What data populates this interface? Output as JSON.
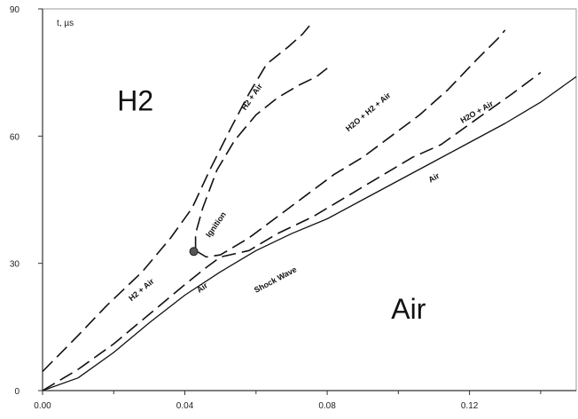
{
  "chart_data": {
    "type": "line",
    "title": "",
    "xlabel": "",
    "ylabel": "t, µs",
    "xlim": [
      0,
      0.15
    ],
    "ylim": [
      0,
      90
    ],
    "grid": false,
    "legend": "none",
    "x_ticks": [
      0.0,
      0.04,
      0.08,
      0.12
    ],
    "x_tick_labels": [
      "0.00",
      "0.04",
      "0.08",
      "0.12"
    ],
    "y_ticks": [
      0,
      30,
      60,
      90
    ],
    "y_tick_labels": [
      "0",
      "30",
      "60",
      "90"
    ],
    "regions": [
      {
        "text": "H2",
        "x": 0.021,
        "y": 66
      },
      {
        "text": "Air",
        "x": 0.098,
        "y": 17
      }
    ],
    "series": [
      {
        "dash": "long",
        "points": [
          [
            0.0,
            4.5
          ],
          [
            0.01,
            13
          ],
          [
            0.018,
            20
          ],
          [
            0.028,
            28
          ],
          [
            0.036,
            36
          ],
          [
            0.042,
            43
          ],
          [
            0.047,
            52
          ],
          [
            0.053,
            62
          ],
          [
            0.058,
            70
          ],
          [
            0.063,
            77
          ],
          [
            0.069,
            81
          ],
          [
            0.073,
            84
          ],
          [
            0.075,
            86
          ]
        ]
      },
      {
        "dash": "long",
        "points": [
          [
            0.043,
            33
          ],
          [
            0.043,
            37
          ],
          [
            0.045,
            43
          ],
          [
            0.049,
            52
          ],
          [
            0.054,
            59
          ],
          [
            0.06,
            65
          ],
          [
            0.066,
            69
          ],
          [
            0.072,
            72
          ],
          [
            0.077,
            74
          ],
          [
            0.08,
            76
          ]
        ]
      },
      {
        "dash": "long",
        "points": [
          [
            0.043,
            33
          ],
          [
            0.046,
            31.5
          ],
          [
            0.05,
            32
          ],
          [
            0.058,
            36
          ],
          [
            0.066,
            41
          ],
          [
            0.074,
            46
          ],
          [
            0.082,
            51
          ],
          [
            0.09,
            55
          ],
          [
            0.098,
            60
          ],
          [
            0.106,
            65
          ],
          [
            0.114,
            71
          ],
          [
            0.122,
            78
          ],
          [
            0.128,
            83
          ],
          [
            0.13,
            85
          ]
        ]
      },
      {
        "dash": "long",
        "points": [
          [
            0.0,
            0
          ],
          [
            0.01,
            5
          ],
          [
            0.02,
            11
          ],
          [
            0.03,
            18
          ],
          [
            0.04,
            25
          ],
          [
            0.046,
            29
          ],
          [
            0.05,
            31.5
          ],
          [
            0.058,
            33
          ],
          [
            0.066,
            37
          ],
          [
            0.076,
            41
          ],
          [
            0.086,
            46
          ],
          [
            0.096,
            51
          ],
          [
            0.104,
            55
          ],
          [
            0.112,
            58
          ],
          [
            0.122,
            64
          ],
          [
            0.132,
            70
          ],
          [
            0.14,
            75
          ]
        ]
      },
      {
        "dash": "solid",
        "points": [
          [
            0.0,
            0
          ],
          [
            0.01,
            3
          ],
          [
            0.02,
            9
          ],
          [
            0.03,
            16
          ],
          [
            0.04,
            22.5
          ],
          [
            0.05,
            28
          ],
          [
            0.06,
            33
          ],
          [
            0.07,
            37
          ],
          [
            0.08,
            40.5
          ],
          [
            0.09,
            45
          ],
          [
            0.1,
            49.5
          ],
          [
            0.11,
            54
          ],
          [
            0.12,
            58.5
          ],
          [
            0.13,
            63
          ],
          [
            0.14,
            68
          ],
          [
            0.15,
            74
          ]
        ]
      }
    ],
    "annotations": [
      {
        "text": "t, µs",
        "x": 0.004,
        "y": 86
      },
      {
        "text": "H2 + Air",
        "x": 0.057,
        "y": 66,
        "angle": -55
      },
      {
        "text": "H2O + H2 + Air",
        "x": 0.086,
        "y": 61,
        "angle": -40
      },
      {
        "text": "H2O + Air",
        "x": 0.118,
        "y": 63,
        "angle": -30
      },
      {
        "text": "Air",
        "x": 0.109,
        "y": 49,
        "angle": -30
      },
      {
        "text": "Ignition",
        "x": 0.047,
        "y": 36,
        "angle": -55
      },
      {
        "text": "H2 + Air",
        "x": 0.025,
        "y": 21,
        "angle": -40
      },
      {
        "text": "Air",
        "x": 0.044,
        "y": 23,
        "angle": -35
      },
      {
        "text": "Shock Wave",
        "x": 0.06,
        "y": 23,
        "angle": -28
      }
    ],
    "markers": [
      {
        "name": "ignition-point",
        "x": 0.0425,
        "y": 32.8
      }
    ]
  }
}
